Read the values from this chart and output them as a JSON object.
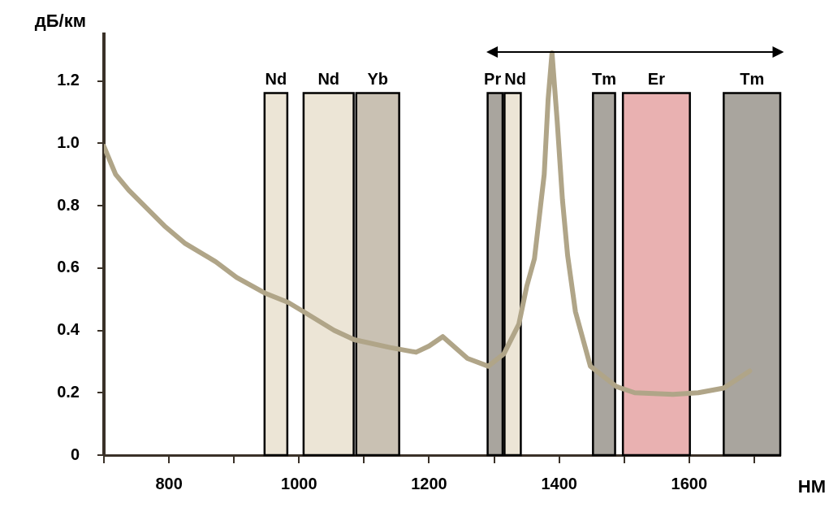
{
  "chart_data": {
    "type": "line",
    "xlabel": "НМ",
    "ylabel": "дБ/км",
    "x": [
      700,
      718,
      738,
      793,
      824,
      872,
      904,
      947,
      983,
      1007,
      1054,
      1085,
      1140,
      1180,
      1200,
      1221,
      1259,
      1291,
      1315,
      1338,
      1350,
      1362,
      1377,
      1383,
      1389,
      1397,
      1405,
      1413,
      1425,
      1448,
      1488,
      1516,
      1575,
      1614,
      1653,
      1693
    ],
    "series": [
      {
        "color": "#b0a588",
        "values": [
          0.99,
          0.9,
          0.85,
          0.735,
          0.68,
          0.62,
          0.57,
          0.52,
          0.49,
          0.46,
          0.4,
          0.37,
          0.345,
          0.33,
          0.35,
          0.38,
          0.31,
          0.285,
          0.325,
          0.42,
          0.54,
          0.63,
          0.9,
          1.14,
          1.29,
          1.07,
          0.82,
          0.64,
          0.46,
          0.285,
          0.22,
          0.2,
          0.195,
          0.2,
          0.215,
          0.27
        ]
      }
    ],
    "xlim": [
      700,
      1740
    ],
    "xticks": [
      {
        "value": 700,
        "label": null
      },
      800,
      {
        "value": 900,
        "label": null
      },
      1000,
      {
        "value": 1100,
        "label": null
      },
      1200,
      {
        "value": 1300,
        "label": null
      },
      1400,
      {
        "value": 1500,
        "label": null
      },
      1600,
      {
        "value": 1700,
        "label": null
      }
    ],
    "ylim": [
      0,
      1.35
    ],
    "yticks": [
      0,
      0.2,
      0.4,
      0.6,
      0.8,
      {
        "value": 1,
        "label": "1.0"
      },
      1.2
    ],
    "bands": [
      {
        "axis": "x",
        "from": 947,
        "to": 982,
        "label": "Nd",
        "color": "#ece5d6"
      },
      {
        "axis": "x",
        "from": 1007,
        "to": 1084,
        "label": "Nd",
        "color": "#ece5d6"
      },
      {
        "axis": "x",
        "from": 1088,
        "to": 1154,
        "label": "Yb",
        "color": "#c9c1b3"
      },
      {
        "axis": "x",
        "from": 1290,
        "to": 1313,
        "label": "Pr",
        "color": "#a9a59e"
      },
      {
        "axis": "x",
        "from": 1316,
        "to": 1341,
        "label": "Nd",
        "color": "#ece5d6"
      },
      {
        "axis": "x",
        "from": 1452,
        "to": 1486,
        "label": "Tm",
        "color": "#a9a59e"
      },
      {
        "axis": "x",
        "from": 1498,
        "to": 1601,
        "label": "Er",
        "color": "#e9b1b1"
      },
      {
        "axis": "x",
        "from": 1653,
        "to": 1740,
        "label": "Tm",
        "color": "#a9a59e"
      }
    ],
    "grid": false,
    "legend": false,
    "marker": "none",
    "line_style": "solid"
  }
}
